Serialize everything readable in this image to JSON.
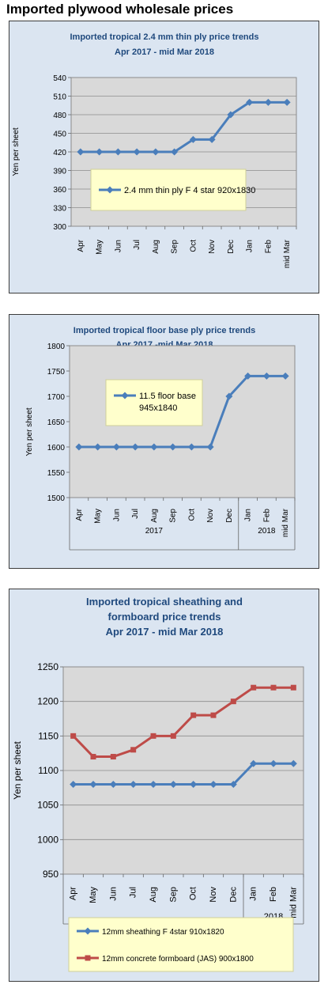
{
  "page_title": "Imported plywood wholesale prices",
  "chart_data": [
    {
      "type": "line",
      "title_lines": [
        "Imported tropical 2.4 mm thin ply price trends",
        "Apr 2017 - mid Mar 2018"
      ],
      "ylabel": "Yen per sheet",
      "ylim": [
        300,
        540
      ],
      "yticks": [
        "540",
        "510",
        "480",
        "450",
        "420",
        "390",
        "360",
        "330",
        "300"
      ],
      "categories": [
        "Apr",
        "May",
        "Jun",
        "Jul",
        "Aug",
        "Sep",
        "Oct",
        "Nov",
        "Dec",
        "Jan",
        "Feb",
        "mid Mar"
      ],
      "series": [
        {
          "name": "2.4 mm thin ply F 4 star 920x1830",
          "values": [
            420,
            420,
            420,
            420,
            420,
            420,
            440,
            440,
            480,
            500,
            500,
            500
          ],
          "color": "#4a7ebb"
        }
      ],
      "grid": true,
      "legend_position": "inside-bottom-center"
    },
    {
      "type": "line",
      "title_lines": [
        "Imported tropical floor base ply price trends",
        "Apr 2017 -mid Mar 2018"
      ],
      "ylabel": "Yen per sheet",
      "ylim": [
        1500,
        1800
      ],
      "yticks": [
        "1800",
        "1750",
        "1700",
        "1650",
        "1600",
        "1550",
        "1500"
      ],
      "categories": [
        "Apr",
        "May",
        "Jun",
        "Jul",
        "Aug",
        "Sep",
        "Oct",
        "Nov",
        "Dec",
        "Jan",
        "Feb",
        "mid Mar"
      ],
      "year_groups": [
        "2017",
        "2018"
      ],
      "series": [
        {
          "name_lines": [
            "11.5 floor base",
            "945x1840"
          ],
          "values": [
            1600,
            1600,
            1600,
            1600,
            1600,
            1600,
            1600,
            1600,
            1700,
            1740,
            1740,
            1740
          ],
          "color": "#4a7ebb"
        }
      ],
      "grid": false,
      "legend_position": "inside-top-center"
    },
    {
      "type": "line",
      "title_lines": [
        "Imported tropical sheathing and",
        "formboard price trends",
        "Apr 2017 - mid Mar 2018"
      ],
      "ylabel": "Yen per sheet",
      "ylim": [
        950,
        1250
      ],
      "yticks": [
        "1250",
        "1200",
        "1150",
        "1100",
        "1050",
        "1000",
        "950"
      ],
      "categories": [
        "Apr",
        "May",
        "Jun",
        "Jul",
        "Aug",
        "Sep",
        "Oct",
        "Nov",
        "Dec",
        "Jan",
        "Feb",
        "mid Mar"
      ],
      "year_groups": [
        "",
        "2018"
      ],
      "series": [
        {
          "name": "12mm sheathing F 4star 910x1820",
          "values": [
            1080,
            1080,
            1080,
            1080,
            1080,
            1080,
            1080,
            1080,
            1080,
            1110,
            1110,
            1110
          ],
          "color": "#4a7ebb"
        },
        {
          "name": "12mm concrete formboard (JAS) 900x1800",
          "values": [
            1150,
            1120,
            1120,
            1130,
            1150,
            1150,
            1180,
            1180,
            1200,
            1220,
            1220,
            1220
          ],
          "color": "#be4b48"
        }
      ],
      "grid": true,
      "legend_position": "bottom"
    }
  ]
}
